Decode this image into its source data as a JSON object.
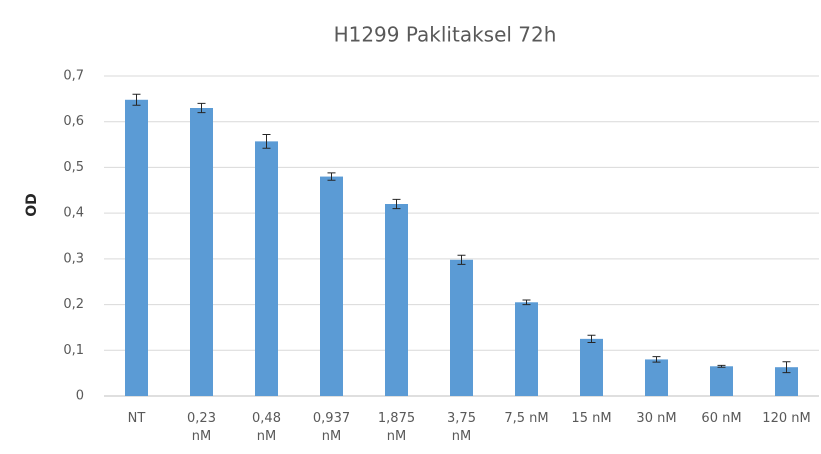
{
  "chart_data": {
    "type": "bar",
    "title": "H1299 Paklitaksel 72h",
    "y_label": "OD",
    "categories": [
      "NT",
      "0,23\nnM",
      "0,48\nnM",
      "0,937\nnM",
      "1,875\nnM",
      "3,75\nnM",
      "7,5 nM",
      "15 nM",
      "30 nM",
      "60 nM",
      "120 nM"
    ],
    "values": [
      0.648,
      0.63,
      0.557,
      0.48,
      0.42,
      0.298,
      0.205,
      0.125,
      0.08,
      0.065,
      0.063
    ],
    "errors": [
      0.012,
      0.01,
      0.015,
      0.008,
      0.01,
      0.01,
      0.005,
      0.008,
      0.006,
      0.002,
      0.012
    ],
    "color": "#5b9bd5",
    "ylim": [
      0,
      0.7
    ],
    "yticks": [
      0,
      {
        "value": 0.1,
        "label": "0,1"
      },
      {
        "value": 0.2,
        "label": "0,2"
      },
      {
        "value": 0.3,
        "label": "0,3"
      },
      {
        "value": 0.4,
        "label": "0,4"
      },
      {
        "value": 0.5,
        "label": "0,5"
      },
      {
        "value": 0.6,
        "label": "0,6"
      },
      {
        "value": 0.7,
        "label": "0,7"
      }
    ],
    "grid": true
  }
}
